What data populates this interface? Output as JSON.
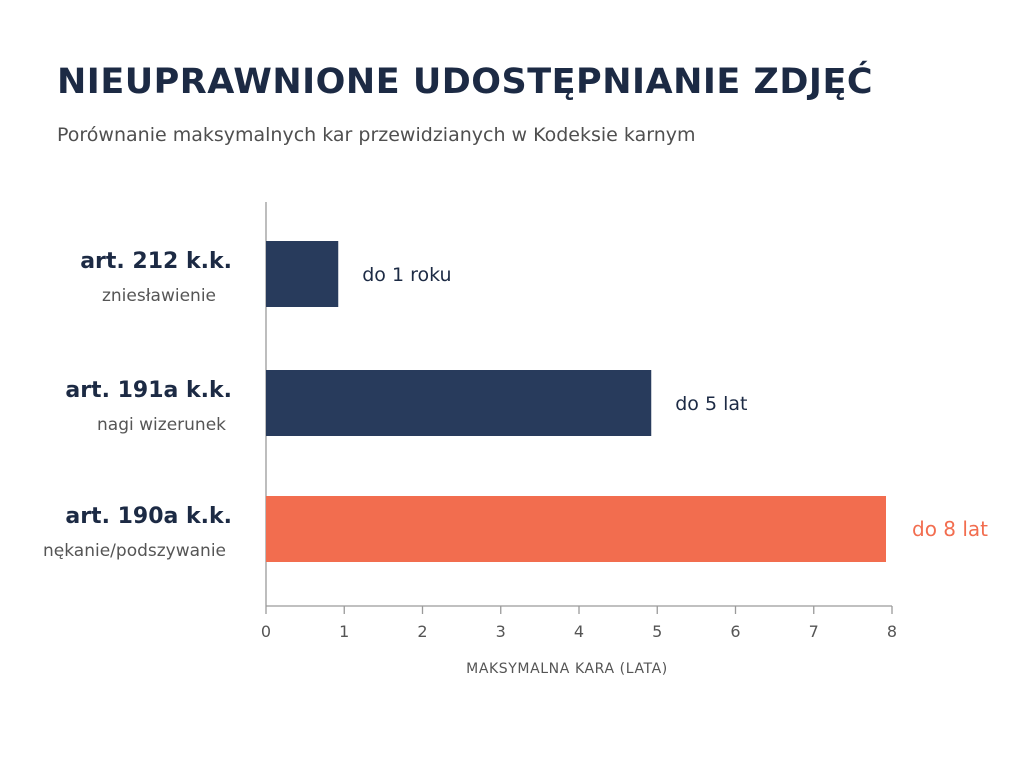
{
  "title": "NIEUPRAWNIONE UDOSTĘPNIANIE ZDJĘĆ",
  "subtitle": "Porównanie maksymalnych kar przewidzianych w Kodeksie karnym",
  "colors": {
    "bar_default": "#283b5c",
    "bar_highlight": "#f26d4f",
    "text_dark": "#1c2a44",
    "text_muted": "#555555",
    "axis": "#9a9a9a"
  },
  "chart_data": {
    "type": "bar",
    "orientation": "horizontal",
    "categories": [
      "art. 212 k.k.",
      "art. 191a k.k.",
      "art. 190a k.k."
    ],
    "category_sublabels": [
      "zniesławienie",
      "nagi wizerunek",
      "nękanie/podszywanie"
    ],
    "values": [
      1,
      5,
      8
    ],
    "value_labels": [
      "do 1 roku",
      "do 5 lat",
      "do 8 lat"
    ],
    "highlight_index": 2,
    "title": "NIEUPRAWNIONE UDOSTĘPNIANIE ZDJĘĆ",
    "subtitle": "Porównanie maksymalnych kar przewidzianych w Kodeksie karnym",
    "xlabel": "MAKSYMALNA KARA (LATA)",
    "ylabel": "",
    "xlim": [
      0,
      8
    ],
    "xticks": [
      "0",
      "1",
      "2",
      "3",
      "4",
      "5",
      "6",
      "7",
      "8"
    ],
    "grid": false,
    "legend": "none"
  }
}
